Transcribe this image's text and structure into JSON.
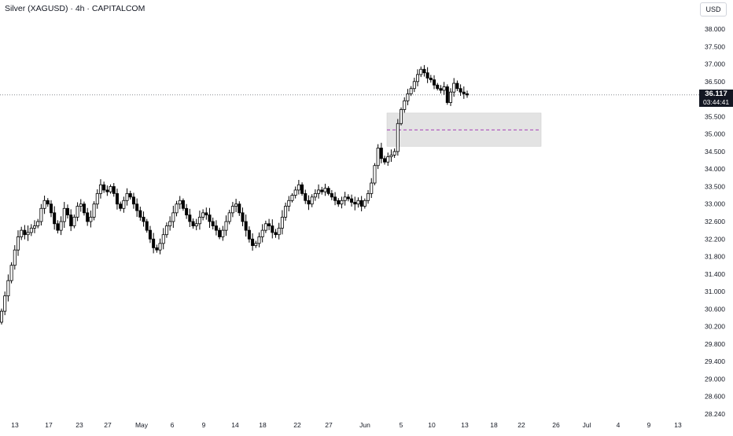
{
  "header": {
    "title": "Silver (XAGUSD) · 4h · CAPITALCOM",
    "currency": "USD"
  },
  "last_price": {
    "value": "36.117",
    "countdown": "03:44:41"
  },
  "colors": {
    "candle": "#000000",
    "grid": "#ffffff",
    "zone_fill": "#e3e3e3",
    "zone_midline": "#9c27b0",
    "price_line": "#131722"
  },
  "chart_data": {
    "type": "candlestick",
    "title": "Silver (XAGUSD) · 4h · CAPITALCOM",
    "y_axis": {
      "ticks": [
        "38.000",
        "37.500",
        "37.000",
        "36.500",
        "36.000",
        "35.500",
        "35.000",
        "34.500",
        "34.000",
        "33.500",
        "33.000",
        "32.600",
        "32.200",
        "31.800",
        "31.400",
        "31.000",
        "30.600",
        "30.200",
        "29.800",
        "29.400",
        "29.000",
        "28.600",
        "28.240"
      ],
      "scale": "log",
      "range": [
        28.24,
        38.0
      ]
    },
    "x_axis": {
      "ticks": [
        "13",
        "17",
        "23",
        "27",
        "May",
        "6",
        "9",
        "14",
        "18",
        "22",
        "27",
        "Jun",
        "5",
        "10",
        "13",
        "18",
        "22",
        "26",
        "Jul",
        "4",
        "9",
        "13"
      ]
    },
    "price_series_closes": [
      30.55,
      30.9,
      31.25,
      31.6,
      31.95,
      32.25,
      32.4,
      32.3,
      32.35,
      32.45,
      32.5,
      32.6,
      32.9,
      33.1,
      33.0,
      32.8,
      32.55,
      32.4,
      32.6,
      32.9,
      32.75,
      32.5,
      32.7,
      32.95,
      33.0,
      32.8,
      32.6,
      32.7,
      33.0,
      33.3,
      33.55,
      33.4,
      33.35,
      33.5,
      33.3,
      33.0,
      32.9,
      33.1,
      33.3,
      33.2,
      33.0,
      32.85,
      32.7,
      32.6,
      32.4,
      32.2,
      32.0,
      31.95,
      32.1,
      32.3,
      32.5,
      32.6,
      32.8,
      33.0,
      33.1,
      32.9,
      32.75,
      32.6,
      32.5,
      32.55,
      32.7,
      32.8,
      32.75,
      32.6,
      32.5,
      32.4,
      32.25,
      32.4,
      32.6,
      32.8,
      32.95,
      33.0,
      32.8,
      32.6,
      32.4,
      32.2,
      32.05,
      32.1,
      32.25,
      32.4,
      32.55,
      32.5,
      32.35,
      32.3,
      32.45,
      32.7,
      32.95,
      33.1,
      33.25,
      33.4,
      33.55,
      33.3,
      33.1,
      33.0,
      33.2,
      33.3,
      33.4,
      33.35,
      33.45,
      33.3,
      33.2,
      33.1,
      33.0,
      33.1,
      33.2,
      33.15,
      33.05,
      33.0,
      33.1,
      32.95,
      33.1,
      33.3,
      33.6,
      34.1,
      34.6,
      34.3,
      34.2,
      34.35,
      34.4,
      34.5,
      35.3,
      35.7,
      35.95,
      36.15,
      36.3,
      36.5,
      36.7,
      36.85,
      36.75,
      36.6,
      36.55,
      36.4,
      36.3,
      36.25,
      36.35,
      35.9,
      36.2,
      36.45,
      36.3,
      36.2,
      36.15,
      36.117
    ],
    "annotations": [
      {
        "type": "zone",
        "top": 35.6,
        "bottom": 34.65,
        "midline": 35.12
      },
      {
        "type": "horizontal_line",
        "value": 36.117
      }
    ]
  }
}
